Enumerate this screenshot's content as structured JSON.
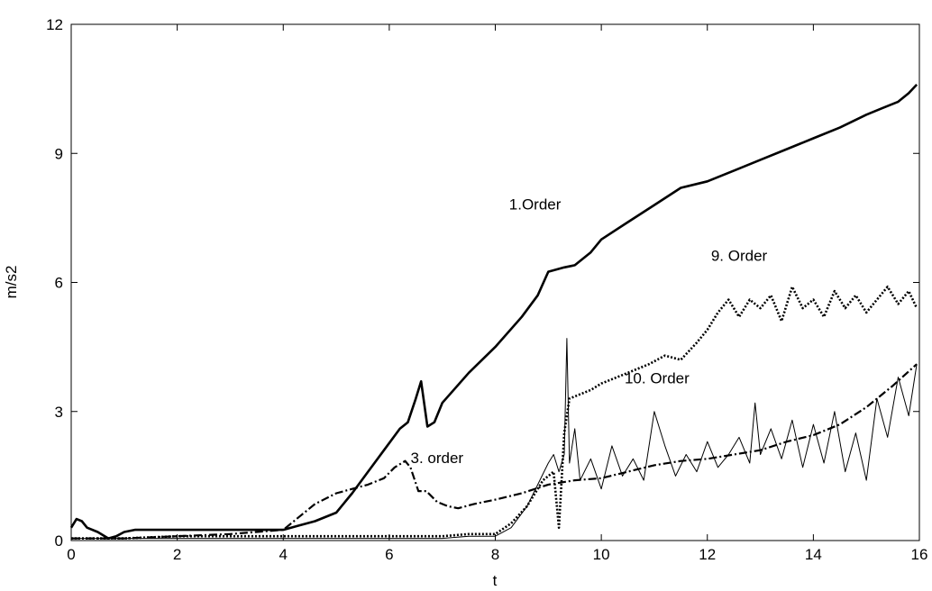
{
  "chart_data": {
    "type": "line",
    "title": "",
    "xlabel": "t",
    "ylabel": "m/s2",
    "xlim": [
      0,
      16
    ],
    "ylim": [
      0,
      12
    ],
    "xticks": [
      0,
      2,
      4,
      6,
      8,
      10,
      12,
      14,
      16
    ],
    "yticks": [
      0,
      3,
      6,
      9,
      12
    ],
    "grid": false,
    "legend": "none",
    "series": [
      {
        "key": "order1",
        "style": "solid",
        "x": [
          0,
          0.1,
          0.2,
          0.3,
          0.5,
          0.7,
          0.85,
          1.0,
          1.2,
          1.5,
          2.0,
          2.5,
          3.0,
          3.5,
          4.0,
          4.3,
          4.6,
          5.0,
          5.3,
          5.6,
          5.9,
          6.2,
          6.35,
          6.5,
          6.6,
          6.72,
          6.85,
          7.0,
          7.5,
          8.0,
          8.5,
          8.8,
          9.0,
          9.3,
          9.5,
          9.8,
          10.0,
          10.5,
          11.0,
          11.5,
          12.0,
          12.5,
          13.0,
          13.5,
          14.0,
          14.5,
          15.0,
          15.3,
          15.6,
          15.8,
          15.95
        ],
        "values": [
          0.3,
          0.5,
          0.45,
          0.3,
          0.2,
          0.05,
          0.1,
          0.2,
          0.25,
          0.25,
          0.25,
          0.25,
          0.25,
          0.25,
          0.25,
          0.35,
          0.45,
          0.65,
          1.1,
          1.6,
          2.1,
          2.6,
          2.75,
          3.3,
          3.7,
          2.65,
          2.75,
          3.2,
          3.9,
          4.5,
          5.2,
          5.7,
          6.25,
          6.35,
          6.4,
          6.7,
          7.0,
          7.4,
          7.8,
          8.2,
          8.35,
          8.6,
          8.85,
          9.1,
          9.35,
          9.6,
          9.9,
          10.05,
          10.2,
          10.4,
          10.6
        ]
      },
      {
        "key": "order3",
        "style": "dashdot",
        "x": [
          0,
          0.5,
          1.0,
          2.0,
          3.0,
          4.0,
          4.3,
          4.6,
          5.0,
          5.3,
          5.6,
          5.9,
          6.1,
          6.3,
          6.4,
          6.55,
          6.7,
          6.9,
          7.1,
          7.3,
          7.6,
          8.0,
          8.5,
          9.0,
          9.5,
          10.0,
          10.5,
          11.0,
          11.5,
          12.0,
          12.5,
          13.0,
          13.5,
          14.0,
          14.5,
          15.0,
          15.5,
          15.95
        ],
        "values": [
          0.05,
          0.05,
          0.05,
          0.1,
          0.15,
          0.25,
          0.55,
          0.85,
          1.1,
          1.2,
          1.3,
          1.45,
          1.7,
          1.85,
          1.7,
          1.15,
          1.15,
          0.9,
          0.8,
          0.75,
          0.85,
          0.95,
          1.1,
          1.3,
          1.4,
          1.45,
          1.6,
          1.75,
          1.85,
          1.9,
          2.0,
          2.1,
          2.3,
          2.45,
          2.7,
          3.1,
          3.6,
          4.1
        ]
      },
      {
        "key": "order9",
        "style": "dotted",
        "x": [
          0,
          1.0,
          2.0,
          3.0,
          4.0,
          4.5,
          5.0,
          5.5,
          6.0,
          6.5,
          7.0,
          7.5,
          7.8,
          8.0,
          8.3,
          8.6,
          8.9,
          9.1,
          9.2,
          9.3,
          9.4,
          9.6,
          9.8,
          10.0,
          10.3,
          10.6,
          10.9,
          11.2,
          11.5,
          11.8,
          12.0,
          12.2,
          12.4,
          12.6,
          12.8,
          13.0,
          13.2,
          13.4,
          13.6,
          13.8,
          14.0,
          14.2,
          14.4,
          14.6,
          14.8,
          15.0,
          15.2,
          15.4,
          15.6,
          15.8,
          15.95
        ],
        "values": [
          0.05,
          0.05,
          0.1,
          0.1,
          0.1,
          0.1,
          0.1,
          0.1,
          0.1,
          0.1,
          0.1,
          0.15,
          0.15,
          0.15,
          0.4,
          0.8,
          1.4,
          1.6,
          0.3,
          2.5,
          3.3,
          3.4,
          3.5,
          3.65,
          3.8,
          3.95,
          4.1,
          4.3,
          4.2,
          4.6,
          4.9,
          5.3,
          5.6,
          5.2,
          5.6,
          5.4,
          5.7,
          5.1,
          5.9,
          5.4,
          5.6,
          5.2,
          5.8,
          5.4,
          5.7,
          5.3,
          5.6,
          5.9,
          5.5,
          5.8,
          5.4
        ]
      },
      {
        "key": "order10",
        "style": "thin",
        "x": [
          0,
          1.0,
          2.0,
          3.0,
          4.0,
          5.0,
          6.0,
          7.0,
          7.5,
          8.0,
          8.3,
          8.6,
          8.8,
          9.0,
          9.1,
          9.2,
          9.3,
          9.35,
          9.4,
          9.5,
          9.6,
          9.8,
          10.0,
          10.2,
          10.4,
          10.6,
          10.8,
          11.0,
          11.1,
          11.2,
          11.4,
          11.6,
          11.8,
          12.0,
          12.2,
          12.4,
          12.6,
          12.8,
          12.9,
          13.0,
          13.2,
          13.4,
          13.6,
          13.8,
          14.0,
          14.2,
          14.4,
          14.6,
          14.8,
          15.0,
          15.2,
          15.4,
          15.6,
          15.8,
          15.95
        ],
        "values": [
          0.05,
          0.05,
          0.05,
          0.05,
          0.05,
          0.05,
          0.05,
          0.05,
          0.1,
          0.1,
          0.3,
          0.8,
          1.3,
          1.8,
          2.0,
          1.6,
          2.0,
          4.7,
          1.8,
          2.6,
          1.4,
          1.9,
          1.2,
          2.2,
          1.5,
          1.9,
          1.4,
          3.0,
          2.6,
          2.2,
          1.5,
          2.0,
          1.6,
          2.3,
          1.7,
          2.0,
          2.4,
          1.8,
          3.2,
          2.0,
          2.6,
          1.9,
          2.8,
          1.7,
          2.7,
          1.8,
          3.0,
          1.6,
          2.5,
          1.4,
          3.3,
          2.4,
          3.8,
          2.9,
          4.1
        ]
      }
    ],
    "annotations": [
      {
        "text": "1.Order",
        "x": 8.75,
        "y": 7.7
      },
      {
        "text": "9. Order",
        "x": 12.6,
        "y": 6.5
      },
      {
        "text": "10. Order",
        "x": 11.05,
        "y": 3.65
      },
      {
        "text": "3. order",
        "x": 6.9,
        "y": 1.8
      }
    ]
  }
}
